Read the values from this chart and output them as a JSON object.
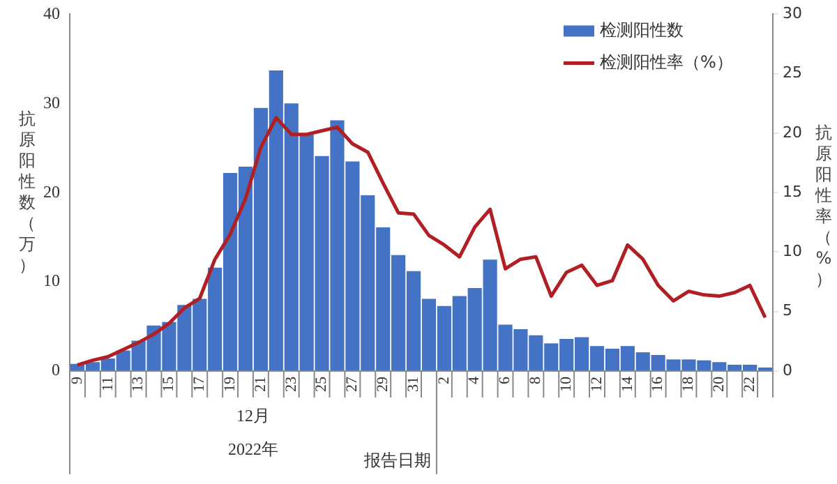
{
  "chart_data": {
    "type": "bar",
    "xlabel": "报告日期",
    "ylabel": "抗原阳性数（万）",
    "y2label": "抗原阳性率（%）",
    "annotations": [
      "12月",
      "2022年"
    ],
    "categories": [
      "9",
      null,
      "11",
      null,
      "13",
      null,
      "15",
      null,
      "17",
      null,
      "19",
      null,
      "21",
      null,
      "23",
      null,
      "25",
      null,
      "27",
      null,
      "29",
      null,
      "31",
      null,
      "2",
      null,
      "4",
      null,
      "6",
      null,
      "8",
      null,
      "10",
      null,
      "12",
      null,
      "14",
      null,
      "16",
      null,
      "18",
      null,
      "20",
      null,
      "22",
      null
    ],
    "series": [
      {
        "name": "检测阳性数",
        "color": "#4472c4",
        "values": [
          0.8,
          1.0,
          1.4,
          2.3,
          3.4,
          5.1,
          5.5,
          7.4,
          8.1,
          11.6,
          22.2,
          22.9,
          29.5,
          33.7,
          30.0,
          26.6,
          24.1,
          28.1,
          23.5,
          19.7,
          16.1,
          13.0,
          11.2,
          8.1,
          7.3,
          8.4,
          9.3,
          12.5,
          5.2,
          4.7,
          4.0,
          3.1,
          3.6,
          3.8,
          2.8,
          2.5,
          2.8,
          2.1,
          1.8,
          1.3,
          1.3,
          1.2,
          1.0,
          0.7,
          0.7,
          0.4
        ]
      },
      {
        "name": "检测阳性率（%）",
        "type": "line",
        "axis": "y2",
        "color": "#b01f24",
        "values": [
          0.5,
          0.9,
          1.2,
          1.8,
          2.4,
          3.1,
          4.0,
          5.3,
          6.1,
          9.4,
          11.5,
          14.5,
          18.8,
          21.3,
          19.9,
          19.9,
          20.2,
          20.5,
          19.1,
          18.4,
          15.8,
          13.3,
          13.2,
          11.4,
          10.6,
          9.6,
          12.1,
          13.6,
          8.6,
          9.4,
          9.6,
          6.3,
          8.3,
          8.9,
          7.2,
          7.6,
          10.6,
          9.4,
          7.2,
          5.9,
          6.7,
          6.4,
          6.3,
          6.6,
          7.2,
          4.5
        ]
      }
    ],
    "ylim": [
      0,
      40
    ],
    "yticks": [
      0,
      10,
      20,
      30,
      40
    ],
    "y2lim": [
      0,
      30
    ],
    "y2ticks": [
      0,
      5,
      10,
      15,
      20,
      25,
      30
    ],
    "grid": false,
    "legend": "top right",
    "marker": "none",
    "line_style": "solid"
  }
}
